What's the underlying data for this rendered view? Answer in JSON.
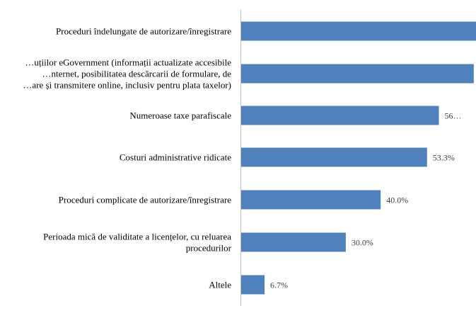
{
  "chart_data": {
    "type": "bar",
    "orientation": "horizontal",
    "categories": [
      [
        "Proceduri îndelungate de autorizare/înregistrare"
      ],
      [
        "…uțiilor eGovernment (informații actualizate accesibile",
        "…nternet, posibilitatea descărcarii de formulare, de",
        "…are și transmitere online, inclusiv pentru plata taxelor)"
      ],
      [
        "Numeroase taxe parafiscale"
      ],
      [
        "Costuri administrative ridicate"
      ],
      [
        "Proceduri complicate de autorizare/înregistrare"
      ],
      [
        "Perioada mică de validitate a licențelor, cu reluarea",
        "procedurilor"
      ],
      [
        "Altele"
      ]
    ],
    "values": [
      70.0,
      66.7,
      56.7,
      53.3,
      40.0,
      30.0,
      6.7
    ],
    "data_labels": [
      "",
      "",
      "56…",
      "53.3%",
      "40.0%",
      "30.0%",
      "6.7%"
    ],
    "xlim": [
      0,
      80
    ],
    "grid": false,
    "bar_color": "#4F81BD",
    "axis_color": "#BFBFBF"
  }
}
